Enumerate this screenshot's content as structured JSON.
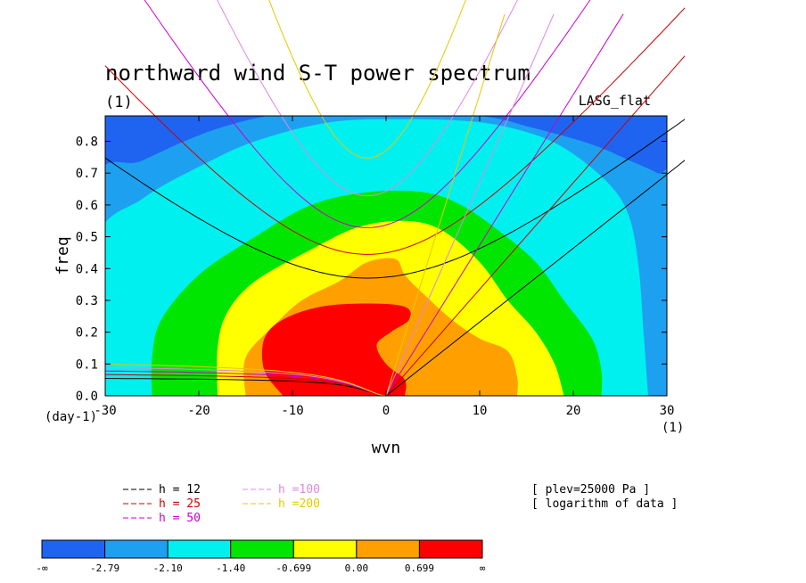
{
  "chart_data": {
    "type": "heatmap",
    "title": "northward wind S-T power spectrum",
    "units_label": "(1)",
    "model_label": "LASG_flat",
    "xlabel": "wvn",
    "ylabel": "freq",
    "x_unit_label": "(1)",
    "y_unit_label": "(day-1)",
    "xlim": [
      -30,
      30
    ],
    "ylim": [
      0,
      0.88
    ],
    "xticks": [
      "-30",
      "-20",
      "-10",
      "0",
      "10",
      "20",
      "30"
    ],
    "yticks": [
      "0.0",
      "0.1",
      "0.2",
      "0.3",
      "0.4",
      "0.5",
      "0.6",
      "0.7",
      "0.8"
    ],
    "contour_levels": [
      "-∞",
      "-2.79",
      "-2.10",
      "-1.40",
      "-0.699",
      "0.00",
      "0.699",
      "∞"
    ],
    "fill_colors": [
      "#1e64f0",
      "#1ea0f0",
      "#00f0f0",
      "#00e600",
      "#ffff00",
      "#ffa000",
      "#ff0000"
    ],
    "field": {
      "description_levels": "log10 power, peak near wvn -5 freq 0.15",
      "center_wvn": -5,
      "center_freq": 0.15
    },
    "dispersion_curves": [
      {
        "name": "h = 12",
        "color": "#000000",
        "equiv_depth": 12
      },
      {
        "name": "h = 25",
        "color": "#cc0000",
        "equiv_depth": 25
      },
      {
        "name": "h = 50",
        "color": "#cc00cc",
        "equiv_depth": 50
      },
      {
        "name": "h =100",
        "color": "#dd88dd",
        "equiv_depth": 100
      },
      {
        "name": "h =200",
        "color": "#e6c800",
        "equiv_depth": 200
      }
    ],
    "annotations": [
      "[ plev=25000 Pa ]",
      "[ logarithm of data ]"
    ]
  }
}
